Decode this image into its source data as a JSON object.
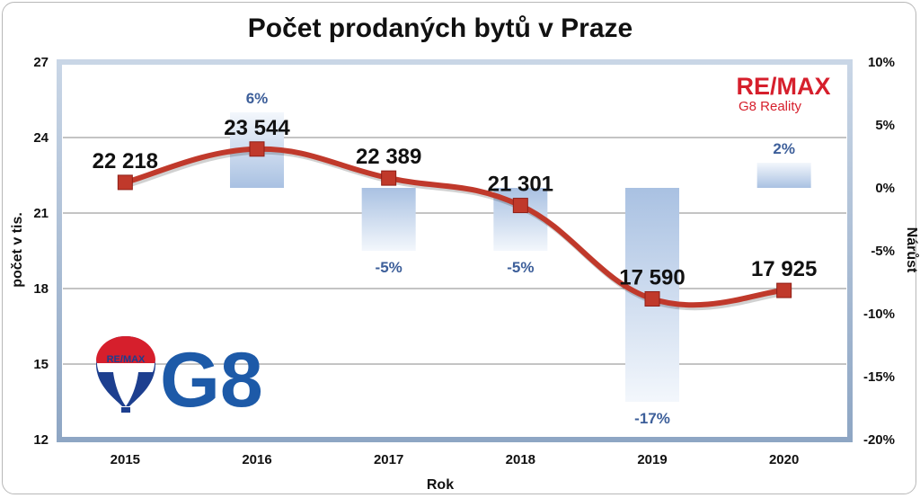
{
  "chart_data": {
    "type": "bar+line",
    "title": "Počet prodaných bytů v Praze",
    "xlabel": "Rok",
    "ylabel_left": "počet v tis.",
    "ylabel_right": "Nárůst",
    "categories": [
      "2015",
      "2016",
      "2017",
      "2018",
      "2019",
      "2020"
    ],
    "line_series": {
      "values": [
        22.218,
        23.544,
        22.389,
        21.301,
        17.59,
        17.925
      ],
      "labels": [
        "22 218",
        "23 544",
        "22 389",
        "21 301",
        "17 590",
        "17 925"
      ],
      "color": "#c0392b"
    },
    "bar_series": {
      "values": [
        null,
        6,
        -5,
        -5,
        -17,
        2
      ],
      "labels": [
        "",
        "6%",
        "-5%",
        "-5%",
        "-17%",
        "2%"
      ],
      "color": "#a9c1e2"
    },
    "ylim_left": [
      12,
      27
    ],
    "yticks_left": [
      "12",
      "15",
      "18",
      "21",
      "24",
      "27"
    ],
    "ylim_right": [
      -20,
      10
    ],
    "yticks_right": [
      "-20%",
      "-15%",
      "-10%",
      "-5%",
      "0%",
      "5%",
      "10%"
    ],
    "grid": true
  },
  "logos": {
    "remax_brand": "RE/MAX",
    "remax_sub": "G8 Reality",
    "balloon_text": "RE/MAX",
    "g8_text": "G8"
  }
}
